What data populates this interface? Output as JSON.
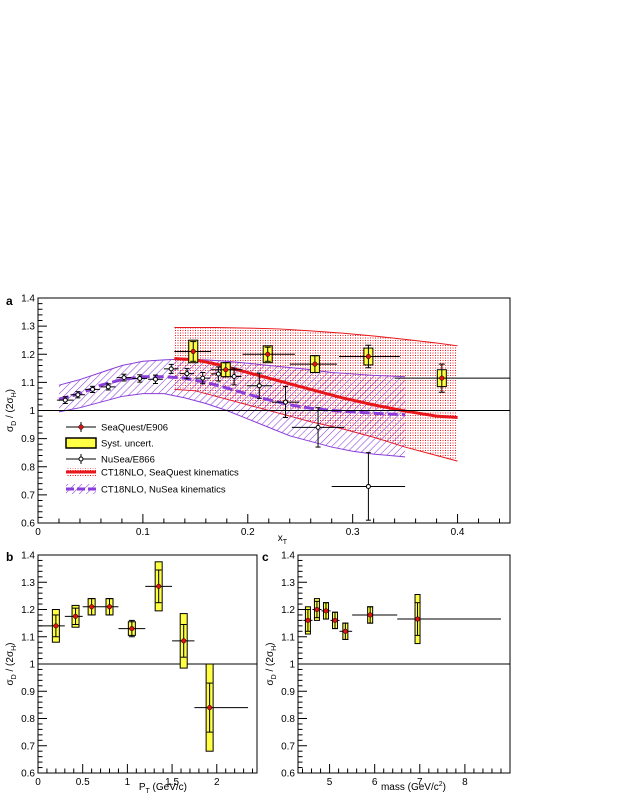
{
  "chart_data": [
    {
      "panel": "a",
      "type": "scatter",
      "xlabel_main": "x",
      "xlabel_sub": "T",
      "ylabel_parts": [
        "σ",
        "D",
        " / (2σ",
        "H",
        ")"
      ],
      "xlim": [
        0,
        0.45
      ],
      "ylim": [
        0.6,
        1.4
      ],
      "xticks": [
        0,
        0.1,
        0.2,
        0.3,
        0.4
      ],
      "yticks": [
        0.6,
        0.7,
        0.8,
        0.9,
        1,
        1.1,
        1.2,
        1.3,
        1.4
      ],
      "xticklabels": [
        "0",
        "0.1",
        "0.2",
        "0.3",
        "0.4"
      ],
      "yticklabels": [
        "0.6",
        "0.7",
        "0.8",
        "0.9",
        "1",
        "1.1",
        "1.2",
        "1.3",
        "1.4"
      ],
      "reference_line": 1,
      "legend": [
        {
          "key": "seaquest",
          "label": "SeaQuest/E906"
        },
        {
          "key": "syst",
          "label": "Syst. uncert."
        },
        {
          "key": "nusea",
          "label": "NuSea/E866"
        },
        {
          "key": "ct18_sq",
          "label": "CT18NLO, SeaQuest kinematics"
        },
        {
          "key": "ct18_nu",
          "label": "CT18NLO, NuSea kinematics"
        }
      ],
      "seaquest": {
        "x": [
          0.148,
          0.179,
          0.219,
          0.264,
          0.315,
          0.385
        ],
        "y": [
          1.21,
          1.145,
          1.2,
          1.165,
          1.192,
          1.115
        ],
        "xlo": [
          0.13,
          0.165,
          0.195,
          0.24,
          0.287,
          0.34
        ],
        "xhi": [
          0.165,
          0.195,
          0.245,
          0.285,
          0.345,
          0.45
        ],
        "stat": [
          0.035,
          0.025,
          0.025,
          0.03,
          0.04,
          0.05
        ],
        "syst": [
          0.04,
          0.025,
          0.03,
          0.03,
          0.03,
          0.03
        ]
      },
      "nusea": {
        "x": [
          0.026,
          0.038,
          0.052,
          0.067,
          0.082,
          0.097,
          0.112,
          0.127,
          0.142,
          0.157,
          0.172,
          0.187,
          0.211,
          0.236,
          0.267,
          0.315
        ],
        "y": [
          1.037,
          1.056,
          1.075,
          1.084,
          1.117,
          1.114,
          1.111,
          1.148,
          1.131,
          1.115,
          1.13,
          1.121,
          1.088,
          1.03,
          0.94,
          0.73
        ],
        "xerr": [
          0.008,
          0.007,
          0.007,
          0.007,
          0.007,
          0.007,
          0.007,
          0.007,
          0.007,
          0.007,
          0.007,
          0.007,
          0.012,
          0.013,
          0.025,
          0.035
        ],
        "yerr": [
          0.012,
          0.011,
          0.011,
          0.011,
          0.012,
          0.013,
          0.015,
          0.016,
          0.018,
          0.02,
          0.025,
          0.03,
          0.045,
          0.055,
          0.07,
          0.12
        ]
      },
      "ct18_seaquest": {
        "x": [
          0.13,
          0.15,
          0.17,
          0.2,
          0.23,
          0.26,
          0.29,
          0.32,
          0.35,
          0.38,
          0.4
        ],
        "y": [
          1.185,
          1.18,
          1.165,
          1.135,
          1.105,
          1.075,
          1.045,
          1.02,
          0.998,
          0.98,
          0.975
        ],
        "lo": [
          1.075,
          1.07,
          1.05,
          1.02,
          0.99,
          0.96,
          0.935,
          0.905,
          0.87,
          0.84,
          0.82
        ],
        "hi": [
          1.295,
          1.295,
          1.295,
          1.293,
          1.29,
          1.283,
          1.275,
          1.265,
          1.253,
          1.24,
          1.23
        ]
      },
      "ct18_nusea": {
        "x": [
          0.02,
          0.04,
          0.06,
          0.08,
          0.1,
          0.12,
          0.14,
          0.16,
          0.18,
          0.2,
          0.22,
          0.24,
          0.26,
          0.28,
          0.3,
          0.32,
          0.35
        ],
        "y": [
          1.04,
          1.06,
          1.09,
          1.11,
          1.12,
          1.12,
          1.115,
          1.1,
          1.08,
          1.058,
          1.038,
          1.02,
          1.008,
          1.0,
          0.995,
          0.99,
          0.985
        ],
        "lo": [
          0.995,
          1.01,
          1.03,
          1.05,
          1.06,
          1.06,
          1.045,
          1.025,
          1.0,
          0.97,
          0.94,
          0.91,
          0.89,
          0.87,
          0.855,
          0.845,
          0.835
        ],
        "hi": [
          1.09,
          1.11,
          1.135,
          1.16,
          1.175,
          1.18,
          1.183,
          1.18,
          1.175,
          1.168,
          1.16,
          1.153,
          1.145,
          1.135,
          1.13,
          1.125,
          1.12
        ]
      }
    },
    {
      "panel": "b",
      "type": "scatter",
      "xlabel_main": "P",
      "xlabel_sub": "T",
      "xlabel_tail": " (GeV/c)",
      "ylabel_parts": [
        "σ",
        "D",
        " / (2σ",
        "H",
        ")"
      ],
      "xlim": [
        0,
        2.45
      ],
      "ylim": [
        0.6,
        1.4
      ],
      "xticks": [
        0,
        0.5,
        1,
        1.5,
        2
      ],
      "yticks": [
        0.6,
        0.7,
        0.8,
        0.9,
        1,
        1.1,
        1.2,
        1.3,
        1.4
      ],
      "xticklabels": [
        "0",
        "0.5",
        "1",
        "1.5",
        "2"
      ],
      "yticklabels": [
        "0.6",
        "0.7",
        "0.8",
        "0.9",
        "1",
        "1.1",
        "1.2",
        "1.3",
        "1.4"
      ],
      "reference_line": 1,
      "seaquest": {
        "x": [
          0.2,
          0.42,
          0.6,
          0.8,
          1.05,
          1.35,
          1.63,
          1.92
        ],
        "y": [
          1.14,
          1.175,
          1.21,
          1.21,
          1.13,
          1.285,
          1.085,
          0.84
        ],
        "xlo": [
          0.0,
          0.3,
          0.5,
          0.7,
          0.9,
          1.2,
          1.5,
          1.75
        ],
        "xhi": [
          0.3,
          0.5,
          0.7,
          0.9,
          1.2,
          1.5,
          1.75,
          2.35
        ],
        "stat": [
          0.04,
          0.03,
          0.03,
          0.03,
          0.03,
          0.06,
          0.06,
          0.09
        ],
        "syst": [
          0.06,
          0.04,
          0.03,
          0.03,
          0.025,
          0.09,
          0.1,
          0.16
        ]
      }
    },
    {
      "panel": "c",
      "type": "scatter",
      "xlabel_main": "mass (GeV/c",
      "xlabel_sup": "2",
      "xlabel_tail": ")",
      "ylabel_parts": [
        "σ",
        "D",
        " / (2σ",
        "H",
        ")"
      ],
      "xlim": [
        4.3,
        9.0
      ],
      "ylim": [
        0.6,
        1.4
      ],
      "xticks": [
        5,
        6,
        7,
        8
      ],
      "yticks": [
        0.6,
        0.7,
        0.8,
        0.9,
        1,
        1.1,
        1.2,
        1.3,
        1.4
      ],
      "xticklabels": [
        "5",
        "6",
        "7",
        "8"
      ],
      "yticklabels": [
        "0.6",
        "0.7",
        "0.8",
        "0.9",
        "1",
        "1.1",
        "1.2",
        "1.3",
        "1.4"
      ],
      "reference_line": 1,
      "seaquest": {
        "x": [
          4.52,
          4.72,
          4.92,
          5.12,
          5.35,
          5.9,
          6.95
        ],
        "y": [
          1.16,
          1.2,
          1.195,
          1.16,
          1.12,
          1.18,
          1.165
        ],
        "xlo": [
          4.42,
          4.62,
          4.82,
          5.02,
          5.22,
          5.5,
          6.5
        ],
        "xhi": [
          4.62,
          4.82,
          5.02,
          5.22,
          5.5,
          6.5,
          8.8
        ],
        "stat": [
          0.04,
          0.03,
          0.03,
          0.03,
          0.03,
          0.03,
          0.06
        ],
        "syst": [
          0.05,
          0.04,
          0.03,
          0.03,
          0.03,
          0.03,
          0.09
        ]
      }
    }
  ],
  "colors": {
    "seaquest_marker": "#dd1111",
    "syst_fill": "#ffff44",
    "ct18_seaquest": "#e8161a",
    "ct18_nusea": "#8a3dd8",
    "axes": "#000000"
  }
}
